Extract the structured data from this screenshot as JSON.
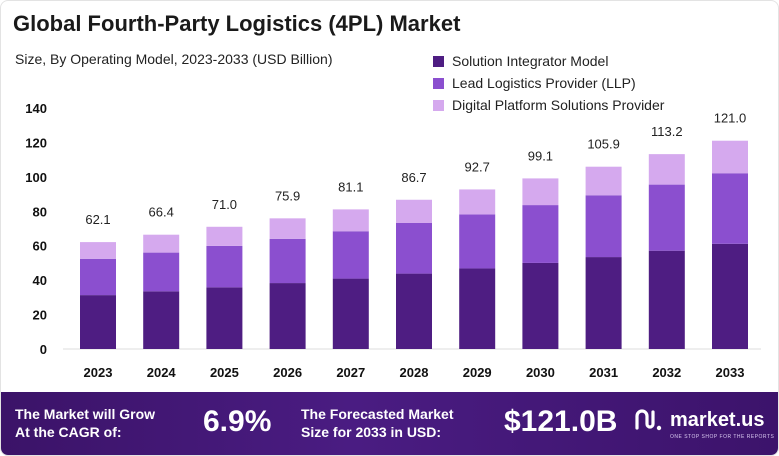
{
  "header": {
    "title": "Global Fourth-Party Logistics (4PL) Market",
    "subtitle": "Size, By Operating Model, 2023-2033 (USD Billion)"
  },
  "colors": {
    "solution_integrator": "#4e1d82",
    "lead_logistics": "#8b4fcf",
    "digital_platform": "#d5a9ee",
    "banner": "#3b1368"
  },
  "chart_data": {
    "type": "bar",
    "stacked": true,
    "categories": [
      "2023",
      "2024",
      "2025",
      "2026",
      "2027",
      "2028",
      "2029",
      "2030",
      "2031",
      "2032",
      "2033"
    ],
    "series": [
      {
        "name": "Solution Integrator Model",
        "values": [
          31.3,
          33.5,
          35.8,
          38.3,
          40.9,
          43.8,
          46.8,
          50.0,
          53.4,
          57.1,
          61.1
        ]
      },
      {
        "name": "Lead Logistics Provider (LLP)",
        "values": [
          21.1,
          22.5,
          24.1,
          25.7,
          27.5,
          29.4,
          31.4,
          33.6,
          35.9,
          38.4,
          41.0
        ]
      },
      {
        "name": "Digital Platform Solutions Provider",
        "values": [
          9.7,
          10.4,
          11.1,
          11.9,
          12.7,
          13.5,
          14.5,
          15.5,
          16.6,
          17.7,
          18.9
        ]
      }
    ],
    "totals": [
      62.1,
      66.4,
      71.0,
      75.9,
      81.1,
      86.7,
      92.7,
      99.1,
      105.9,
      113.2,
      121.0
    ],
    "total_labels": [
      "62.1",
      "66.4",
      "71.0",
      "75.9",
      "81.1",
      "86.7",
      "92.7",
      "99.1",
      "105.9",
      "113.2",
      "121.0"
    ],
    "yticks": [
      0,
      20,
      40,
      60,
      80,
      100,
      120,
      140
    ],
    "ylim": [
      0,
      140
    ],
    "grid": false,
    "legend_position": "top-right"
  },
  "banner": {
    "cagr_text_line1": "The Market will Grow",
    "cagr_text_line2": "At the CAGR of:",
    "cagr_value": "6.9%",
    "forecast_text_line1": "The Forecasted Market",
    "forecast_text_line2": "Size for 2033 in USD:",
    "forecast_value": "$121.0B",
    "brand_name": "market.us",
    "brand_tagline": "ONE STOP SHOP FOR THE REPORTS"
  }
}
